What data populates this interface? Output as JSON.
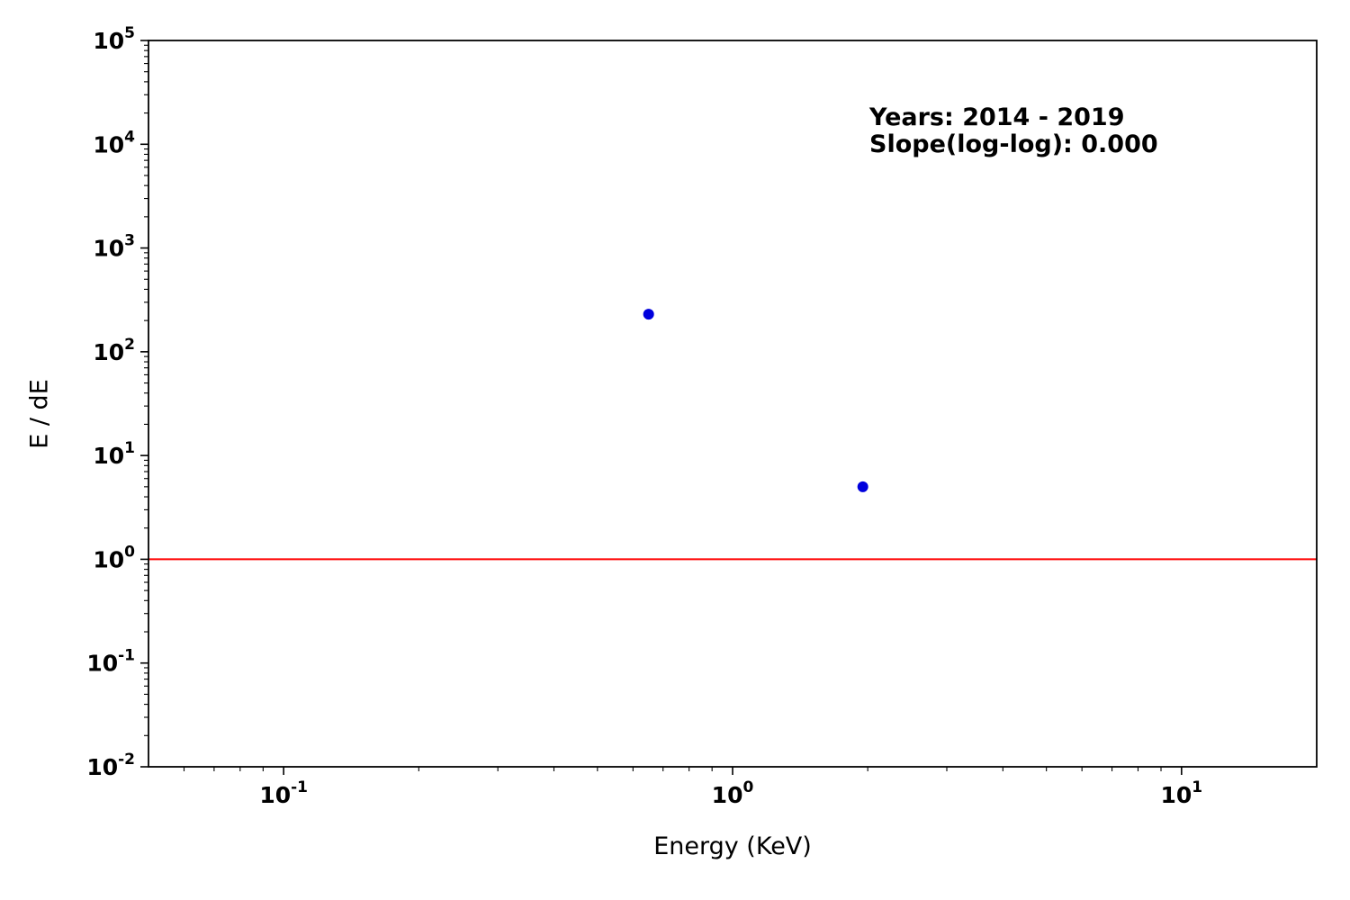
{
  "chart_data": {
    "type": "scatter",
    "title": "",
    "xlabel": "Energy (KeV)",
    "ylabel": "E / dE",
    "xscale": "log",
    "yscale": "log",
    "xlim": [
      0.05,
      20
    ],
    "ylim": [
      0.01,
      100000
    ],
    "x_tick_exponents": [
      -1,
      0,
      1
    ],
    "y_tick_exponents": [
      -2,
      -1,
      0,
      1,
      2,
      3,
      4,
      5
    ],
    "grid": false,
    "legend": "none",
    "series": [
      {
        "name": "spectrum-points",
        "marker": "circle",
        "color": "#0000dd",
        "points": [
          {
            "x": 0.65,
            "y": 230
          },
          {
            "x": 1.95,
            "y": 5.0
          }
        ]
      }
    ],
    "reference_line": {
      "orientation": "horizontal",
      "y": 1.0,
      "color": "#ff0000"
    },
    "annotations": [
      "Years: 2014 - 2019",
      "Slope(log-log): 0.000"
    ],
    "colors": {
      "axis": "#000000",
      "text": "#000000",
      "point": "#0000dd",
      "reference": "#ff0000",
      "background": "#ffffff"
    }
  }
}
